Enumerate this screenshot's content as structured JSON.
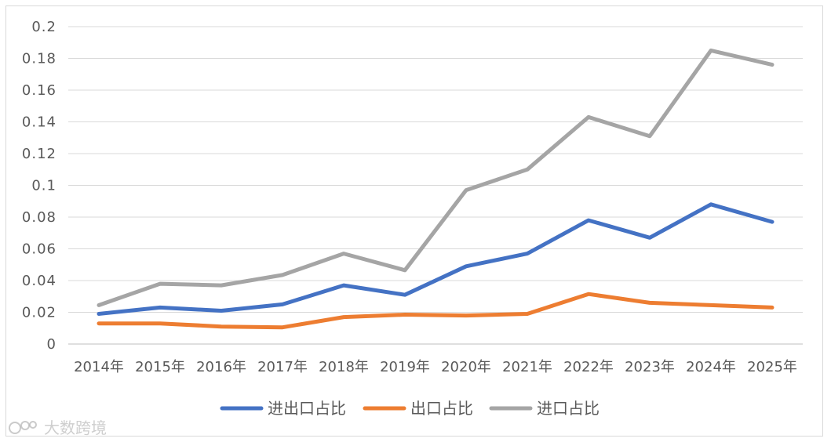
{
  "chart_data": {
    "type": "line",
    "categories": [
      "2014年",
      "2015年",
      "2016年",
      "2017年",
      "2018年",
      "2019年",
      "2020年",
      "2021年",
      "2022年",
      "2023年",
      "2024年",
      "2025年"
    ],
    "series": [
      {
        "name": "进出口占比",
        "color": "#4472c4",
        "values": [
          0.019,
          0.023,
          0.021,
          0.025,
          0.037,
          0.031,
          0.049,
          0.057,
          0.078,
          0.067,
          0.088,
          0.077
        ]
      },
      {
        "name": "出口占比",
        "color": "#ed7d31",
        "values": [
          0.013,
          0.013,
          0.011,
          0.0105,
          0.017,
          0.0185,
          0.018,
          0.019,
          0.0315,
          0.026,
          0.0245,
          0.023
        ]
      },
      {
        "name": "进口占比",
        "color": "#a5a5a5",
        "values": [
          0.0245,
          0.038,
          0.037,
          0.0435,
          0.057,
          0.0465,
          0.097,
          0.11,
          0.143,
          0.131,
          0.185,
          0.176
        ]
      }
    ],
    "yticks": [
      "0",
      "0.02",
      "0.04",
      "0.06",
      "0.08",
      "0.1",
      "0.12",
      "0.14",
      "0.16",
      "0.18",
      "0.2"
    ],
    "ylim": [
      0,
      0.2
    ],
    "grid": true,
    "legend_position": "bottom"
  },
  "watermark": {
    "text": "大数跨境"
  }
}
